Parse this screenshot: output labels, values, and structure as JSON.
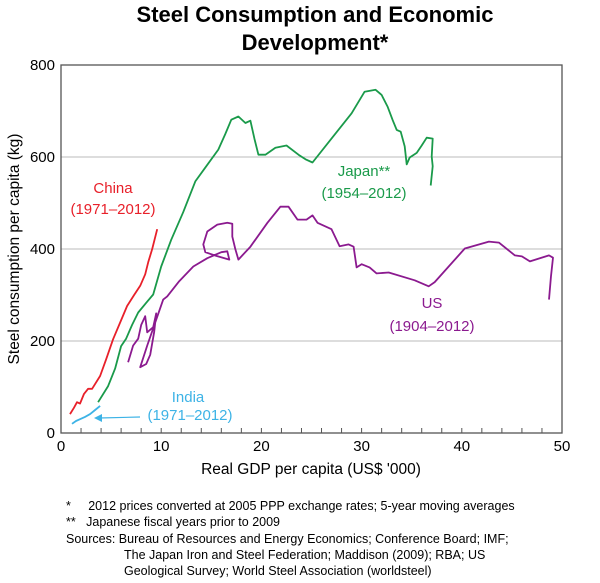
{
  "chart_data": {
    "type": "line",
    "title": [
      "Steel Consumption and Economic",
      "Development*"
    ],
    "xlabel": "Real GDP per capita (US$ '000)",
    "ylabel": "Steel consumption per capita (kg)",
    "xlim": [
      0,
      50
    ],
    "ylim": [
      0,
      800
    ],
    "xticks": [
      "0",
      "10",
      "20",
      "30",
      "40",
      "50"
    ],
    "yticks": [
      "0",
      "200",
      "400",
      "600",
      "800"
    ],
    "grid": "horizontal",
    "series": [
      {
        "name": "China",
        "period": "(1971–2012)",
        "color": "#e8202a",
        "points": [
          [
            0.9,
            41
          ],
          [
            1.3,
            55
          ],
          [
            1.6,
            67
          ],
          [
            1.9,
            64
          ],
          [
            2.3,
            85
          ],
          [
            2.7,
            96
          ],
          [
            3.1,
            96
          ],
          [
            3.9,
            124
          ],
          [
            4.5,
            160
          ],
          [
            5.2,
            204
          ],
          [
            5.9,
            240
          ],
          [
            6.6,
            276
          ],
          [
            7.3,
            300
          ],
          [
            7.9,
            320
          ],
          [
            8.4,
            345
          ],
          [
            8.7,
            371
          ],
          [
            9.1,
            400
          ],
          [
            9.6,
            443
          ]
        ]
      },
      {
        "name": "India",
        "period": "(1971–2012)",
        "color": "#3db3e6",
        "points": [
          [
            1.1,
            20
          ],
          [
            1.5,
            26
          ],
          [
            1.9,
            30
          ],
          [
            2.4,
            35
          ],
          [
            2.9,
            41
          ],
          [
            3.4,
            50
          ],
          [
            3.9,
            59
          ]
        ]
      },
      {
        "name": "Japan**",
        "period": "(1954–2012)",
        "color": "#1a9a4a",
        "points": [
          [
            3.7,
            67
          ],
          [
            4.7,
            102
          ],
          [
            5.4,
            140
          ],
          [
            6.0,
            189
          ],
          [
            6.5,
            205
          ],
          [
            7.1,
            235
          ],
          [
            7.7,
            262
          ],
          [
            8.5,
            283
          ],
          [
            9.2,
            301
          ],
          [
            10.0,
            362
          ],
          [
            11.0,
            420
          ],
          [
            12.2,
            480
          ],
          [
            13.4,
            547
          ],
          [
            14.5,
            580
          ],
          [
            15.7,
            616
          ],
          [
            16.4,
            650
          ],
          [
            17.0,
            681
          ],
          [
            17.7,
            688
          ],
          [
            18.4,
            674
          ],
          [
            18.9,
            679
          ],
          [
            19.3,
            640
          ],
          [
            19.7,
            605
          ],
          [
            20.4,
            605
          ],
          [
            21.4,
            620
          ],
          [
            22.5,
            625
          ],
          [
            23.7,
            605
          ],
          [
            24.4,
            595
          ],
          [
            25.1,
            588
          ],
          [
            27.0,
            640
          ],
          [
            29.0,
            695
          ],
          [
            30.3,
            742
          ],
          [
            31.4,
            746
          ],
          [
            32.0,
            735
          ],
          [
            32.6,
            709
          ],
          [
            33.1,
            680
          ],
          [
            33.5,
            659
          ],
          [
            33.9,
            655
          ],
          [
            34.3,
            623
          ],
          [
            34.5,
            584
          ],
          [
            34.8,
            599
          ],
          [
            35.5,
            609
          ],
          [
            36.0,
            625
          ],
          [
            36.5,
            642
          ],
          [
            37.1,
            640
          ],
          [
            37.0,
            601
          ],
          [
            37.1,
            580
          ],
          [
            36.9,
            538
          ]
        ]
      },
      {
        "name": "US",
        "period": "(1904–2012)",
        "color": "#8b1a8f",
        "points": [
          [
            6.7,
            154
          ],
          [
            7.2,
            190
          ],
          [
            7.7,
            205
          ],
          [
            8.0,
            235
          ],
          [
            8.4,
            254
          ],
          [
            8.6,
            219
          ],
          [
            9.2,
            230
          ],
          [
            9.5,
            260
          ],
          [
            9.3,
            220
          ],
          [
            8.9,
            170
          ],
          [
            8.5,
            150
          ],
          [
            7.9,
            143
          ],
          [
            8.6,
            190
          ],
          [
            9.4,
            240
          ],
          [
            10.2,
            290
          ],
          [
            10.6,
            297
          ],
          [
            11.8,
            330
          ],
          [
            13.2,
            362
          ],
          [
            14.6,
            380
          ],
          [
            16.0,
            393
          ],
          [
            16.6,
            395
          ],
          [
            16.8,
            377
          ],
          [
            15.5,
            385
          ],
          [
            14.4,
            393
          ],
          [
            14.2,
            410
          ],
          [
            14.6,
            438
          ],
          [
            15.6,
            453
          ],
          [
            16.6,
            457
          ],
          [
            17.1,
            455
          ],
          [
            17.1,
            427
          ],
          [
            17.4,
            400
          ],
          [
            17.7,
            377
          ],
          [
            18.9,
            405
          ],
          [
            20.6,
            457
          ],
          [
            21.9,
            492
          ],
          [
            22.7,
            492
          ],
          [
            23.6,
            464
          ],
          [
            24.5,
            464
          ],
          [
            25.1,
            473
          ],
          [
            25.6,
            457
          ],
          [
            27.0,
            443
          ],
          [
            27.8,
            406
          ],
          [
            28.7,
            410
          ],
          [
            29.2,
            405
          ],
          [
            29.5,
            360
          ],
          [
            30.0,
            367
          ],
          [
            30.8,
            360
          ],
          [
            31.5,
            347
          ],
          [
            32.7,
            349
          ],
          [
            35.3,
            332
          ],
          [
            36.7,
            319
          ],
          [
            37.3,
            328
          ],
          [
            40.3,
            401
          ],
          [
            42.7,
            416
          ],
          [
            43.7,
            414
          ],
          [
            45.3,
            386
          ],
          [
            46.0,
            384
          ],
          [
            46.8,
            373
          ],
          [
            48.7,
            386
          ],
          [
            49.1,
            381
          ],
          [
            48.9,
            341
          ],
          [
            48.7,
            290
          ]
        ]
      }
    ]
  },
  "notes": [
    "*     2012 prices converted at 2005 PPP exchange rates; 5-year moving averages",
    "**   Japanese fiscal years prior to 2009",
    "Sources: Bureau of Resources and Energy Economics; Conference Board; IMF;",
    "The Japan Iron and Steel Federation; Maddison (2009); RBA; US",
    "Geological Survey; World Steel Association (worldsteel)"
  ]
}
